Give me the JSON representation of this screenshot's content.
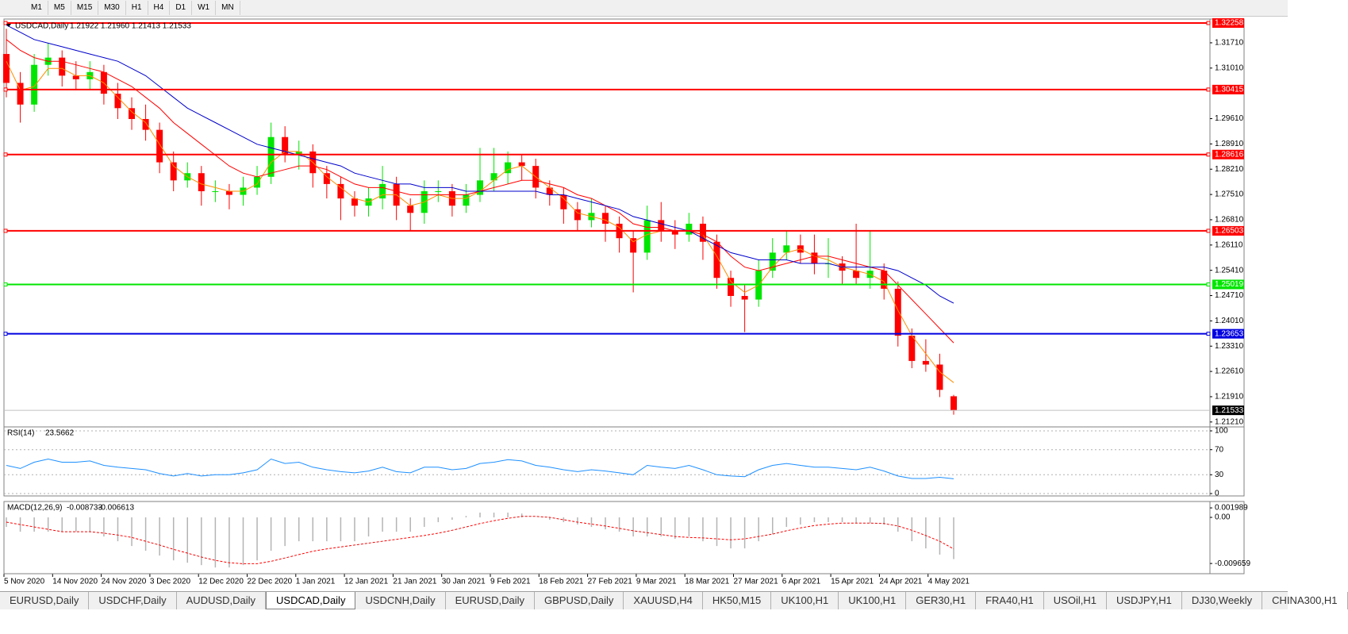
{
  "toolbar": {
    "timeframes": [
      "M1",
      "M5",
      "M15",
      "M30",
      "H1",
      "H4",
      "D1",
      "W1",
      "MN"
    ]
  },
  "chart_data": [
    {
      "type": "candlestick",
      "title": "USDCAD,Daily",
      "ohlc_label": "1.21922 1.21960 1.21413 1.21533",
      "up_color": "#00e600",
      "down_color": "#ff0000",
      "ylim": [
        1.2114,
        1.3228
      ],
      "yticks": [
        {
          "value": 1.3171,
          "label": "1.31710"
        },
        {
          "value": 1.3101,
          "label": "1.31010"
        },
        {
          "value": 1.2961,
          "label": "1.29610"
        },
        {
          "value": 1.2891,
          "label": "1.28910"
        },
        {
          "value": 1.2821,
          "label": "1.28210"
        },
        {
          "value": 1.2751,
          "label": "1.27510"
        },
        {
          "value": 1.2681,
          "label": "1.26810"
        },
        {
          "value": 1.2611,
          "label": "1.26110"
        },
        {
          "value": 1.2541,
          "label": "1.25410"
        },
        {
          "value": 1.2471,
          "label": "1.24710"
        },
        {
          "value": 1.2401,
          "label": "1.24010"
        },
        {
          "value": 1.2331,
          "label": "1.23310"
        },
        {
          "value": 1.2261,
          "label": "1.22610"
        },
        {
          "value": 1.2191,
          "label": "1.21910"
        },
        {
          "value": 1.2121,
          "label": "1.21210"
        }
      ],
      "levels": [
        {
          "value": 1.32258,
          "color": "#ff0000"
        },
        {
          "value": 1.30415,
          "color": "#ff0000"
        },
        {
          "value": 1.28616,
          "color": "#ff0000"
        },
        {
          "value": 1.26503,
          "color": "#ff0000"
        },
        {
          "value": 1.25019,
          "color": "#00e600"
        },
        {
          "value": 1.23653,
          "color": "#0000e0"
        }
      ],
      "last_price": 1.21533,
      "x_labels": [
        "5 Nov 2020",
        "14 Nov 2020",
        "24 Nov 2020",
        "3 Dec 2020",
        "12 Dec 2020",
        "22 Dec 2020",
        "1 Jan 2021",
        "12 Jan 2021",
        "21 Jan 2021",
        "30 Jan 2021",
        "9 Feb 2021",
        "18 Feb 2021",
        "27 Feb 2021",
        "9 Mar 2021",
        "18 Mar 2021",
        "27 Mar 2021",
        "6 Apr 2021",
        "15 Apr 2021",
        "24 Apr 2021",
        "4 May 2021"
      ],
      "candles": [
        [
          1.314,
          1.321,
          1.302,
          1.306
        ],
        [
          1.306,
          1.309,
          1.295,
          1.3
        ],
        [
          1.3,
          1.314,
          1.298,
          1.311
        ],
        [
          1.311,
          1.317,
          1.308,
          1.313
        ],
        [
          1.313,
          1.315,
          1.305,
          1.308
        ],
        [
          1.308,
          1.312,
          1.304,
          1.307
        ],
        [
          1.307,
          1.312,
          1.304,
          1.309
        ],
        [
          1.309,
          1.311,
          1.3,
          1.303
        ],
        [
          1.303,
          1.306,
          1.296,
          1.299
        ],
        [
          1.299,
          1.302,
          1.293,
          1.296
        ],
        [
          1.296,
          1.3,
          1.29,
          1.293
        ],
        [
          1.293,
          1.295,
          1.281,
          1.284
        ],
        [
          1.284,
          1.287,
          1.276,
          1.279
        ],
        [
          1.279,
          1.284,
          1.277,
          1.281
        ],
        [
          1.281,
          1.283,
          1.272,
          1.276
        ],
        [
          1.276,
          1.279,
          1.273,
          1.276
        ],
        [
          1.276,
          1.278,
          1.271,
          1.275
        ],
        [
          1.275,
          1.28,
          1.272,
          1.277
        ],
        [
          1.277,
          1.283,
          1.275,
          1.28
        ],
        [
          1.28,
          1.295,
          1.278,
          1.291
        ],
        [
          1.291,
          1.294,
          1.284,
          1.286
        ],
        [
          1.286,
          1.29,
          1.282,
          1.287
        ],
        [
          1.287,
          1.289,
          1.277,
          1.281
        ],
        [
          1.281,
          1.283,
          1.274,
          1.278
        ],
        [
          1.278,
          1.28,
          1.268,
          1.274
        ],
        [
          1.274,
          1.276,
          1.269,
          1.272
        ],
        [
          1.272,
          1.277,
          1.269,
          1.274
        ],
        [
          1.274,
          1.283,
          1.271,
          1.278
        ],
        [
          1.278,
          1.28,
          1.268,
          1.272
        ],
        [
          1.272,
          1.274,
          1.265,
          1.27
        ],
        [
          1.27,
          1.279,
          1.267,
          1.276
        ],
        [
          1.276,
          1.279,
          1.273,
          1.276
        ],
        [
          1.276,
          1.278,
          1.269,
          1.272
        ],
        [
          1.272,
          1.278,
          1.27,
          1.275
        ],
        [
          1.275,
          1.288,
          1.273,
          1.279
        ],
        [
          1.279,
          1.288,
          1.276,
          1.281
        ],
        [
          1.281,
          1.287,
          1.278,
          1.284
        ],
        [
          1.284,
          1.286,
          1.279,
          1.283
        ],
        [
          1.283,
          1.285,
          1.274,
          1.277
        ],
        [
          1.277,
          1.279,
          1.272,
          1.275
        ],
        [
          1.275,
          1.277,
          1.267,
          1.271
        ],
        [
          1.271,
          1.273,
          1.265,
          1.268
        ],
        [
          1.268,
          1.274,
          1.266,
          1.27
        ],
        [
          1.27,
          1.272,
          1.262,
          1.267
        ],
        [
          1.267,
          1.269,
          1.259,
          1.263
        ],
        [
          1.263,
          1.265,
          1.248,
          1.259
        ],
        [
          1.259,
          1.272,
          1.257,
          1.268
        ],
        [
          1.268,
          1.273,
          1.262,
          1.265
        ],
        [
          1.265,
          1.268,
          1.26,
          1.264
        ],
        [
          1.264,
          1.27,
          1.262,
          1.267
        ],
        [
          1.267,
          1.269,
          1.257,
          1.262
        ],
        [
          1.262,
          1.264,
          1.249,
          1.252
        ],
        [
          1.252,
          1.254,
          1.244,
          1.247
        ],
        [
          1.247,
          1.25,
          1.237,
          1.246
        ],
        [
          1.246,
          1.257,
          1.244,
          1.254
        ],
        [
          1.254,
          1.263,
          1.252,
          1.259
        ],
        [
          1.259,
          1.265,
          1.257,
          1.261
        ],
        [
          1.261,
          1.264,
          1.256,
          1.259
        ],
        [
          1.259,
          1.264,
          1.253,
          1.256
        ],
        [
          1.256,
          1.263,
          1.252,
          1.256
        ],
        [
          1.256,
          1.258,
          1.25,
          1.254
        ],
        [
          1.254,
          1.267,
          1.25,
          1.252
        ],
        [
          1.252,
          1.265,
          1.249,
          1.254
        ],
        [
          1.254,
          1.256,
          1.246,
          1.249
        ],
        [
          1.249,
          1.251,
          1.233,
          1.236
        ],
        [
          1.236,
          1.238,
          1.227,
          1.229
        ],
        [
          1.229,
          1.235,
          1.226,
          1.228
        ],
        [
          1.228,
          1.231,
          1.219,
          1.221
        ],
        [
          1.21922,
          1.2196,
          1.21413,
          1.21533
        ]
      ],
      "ma_lines": [
        {
          "color": "#ff8c00",
          "values": [
            1.312,
            1.304,
            1.305,
            1.31,
            1.31,
            1.308,
            1.308,
            1.306,
            1.302,
            1.298,
            1.295,
            1.289,
            1.283,
            1.28,
            1.278,
            1.277,
            1.276,
            1.276,
            1.278,
            1.284,
            1.287,
            1.287,
            1.284,
            1.28,
            1.277,
            1.274,
            1.273,
            1.275,
            1.275,
            1.272,
            1.273,
            1.275,
            1.274,
            1.274,
            1.276,
            1.279,
            1.282,
            1.283,
            1.28,
            1.277,
            1.274,
            1.27,
            1.269,
            1.268,
            1.266,
            1.262,
            1.264,
            1.265,
            1.265,
            1.265,
            1.264,
            1.258,
            1.251,
            1.248,
            1.25,
            1.255,
            1.259,
            1.26,
            1.258,
            1.257,
            1.255,
            1.254,
            1.253,
            1.251,
            1.243,
            1.236,
            1.231,
            1.226,
            1.223
          ]
        },
        {
          "color": "#ff0000",
          "values": [
            1.318,
            1.315,
            1.313,
            1.312,
            1.312,
            1.311,
            1.31,
            1.309,
            1.307,
            1.305,
            1.302,
            1.299,
            1.295,
            1.292,
            1.289,
            1.286,
            1.283,
            1.281,
            1.28,
            1.281,
            1.282,
            1.283,
            1.283,
            1.282,
            1.28,
            1.278,
            1.277,
            1.277,
            1.276,
            1.275,
            1.275,
            1.275,
            1.275,
            1.275,
            1.276,
            1.277,
            1.278,
            1.279,
            1.279,
            1.278,
            1.277,
            1.275,
            1.274,
            1.272,
            1.27,
            1.267,
            1.266,
            1.266,
            1.265,
            1.265,
            1.264,
            1.262,
            1.258,
            1.255,
            1.254,
            1.255,
            1.256,
            1.257,
            1.258,
            1.258,
            1.257,
            1.256,
            1.255,
            1.254,
            1.25,
            1.246,
            1.242,
            1.238,
            1.234
          ]
        },
        {
          "color": "#0000cc",
          "values": [
            1.322,
            1.32,
            1.318,
            1.317,
            1.316,
            1.315,
            1.314,
            1.313,
            1.312,
            1.31,
            1.308,
            1.305,
            1.302,
            1.299,
            1.297,
            1.295,
            1.293,
            1.291,
            1.289,
            1.288,
            1.287,
            1.286,
            1.285,
            1.284,
            1.283,
            1.281,
            1.28,
            1.279,
            1.278,
            1.278,
            1.277,
            1.277,
            1.277,
            1.276,
            1.276,
            1.276,
            1.276,
            1.276,
            1.276,
            1.275,
            1.275,
            1.274,
            1.273,
            1.272,
            1.271,
            1.269,
            1.268,
            1.267,
            1.266,
            1.265,
            1.263,
            1.261,
            1.259,
            1.258,
            1.257,
            1.257,
            1.257,
            1.256,
            1.256,
            1.256,
            1.255,
            1.255,
            1.255,
            1.255,
            1.254,
            1.252,
            1.25,
            1.247,
            1.245
          ]
        }
      ]
    },
    {
      "type": "line",
      "title": "RSI(14)",
      "color": "#1e90ff",
      "ylim": [
        0,
        100
      ],
      "yticks": [
        0,
        30,
        70,
        100
      ],
      "values": [
        45,
        40,
        50,
        55,
        50,
        50,
        52,
        45,
        42,
        40,
        38,
        32,
        28,
        32,
        28,
        30,
        30,
        33,
        38,
        55,
        48,
        50,
        42,
        38,
        35,
        33,
        36,
        42,
        35,
        33,
        42,
        42,
        38,
        40,
        48,
        50,
        54,
        52,
        45,
        42,
        38,
        35,
        38,
        36,
        33,
        30,
        45,
        42,
        40,
        45,
        38,
        30,
        28,
        27,
        38,
        45,
        48,
        45,
        42,
        42,
        40,
        38,
        42,
        36,
        28,
        24,
        24,
        26,
        23.5662
      ]
    },
    {
      "type": "macd",
      "title": "MACD(12,26,9)",
      "hist_color": "#b4b4b4",
      "signal_color": "#ff0000",
      "ylim": [
        -0.0113,
        0.002
      ],
      "yticks": [
        0.001989,
        {
          "value": 0,
          "label": "0.00"
        },
        -0.009659
      ],
      "histogram": [
        -0.002,
        -0.003,
        -0.003,
        -0.003,
        -0.003,
        -0.003,
        -0.003,
        -0.004,
        -0.005,
        -0.006,
        -0.007,
        -0.008,
        -0.009,
        -0.0095,
        -0.01,
        -0.0105,
        -0.0105,
        -0.01,
        -0.009,
        -0.007,
        -0.006,
        -0.005,
        -0.005,
        -0.005,
        -0.005,
        -0.005,
        -0.004,
        -0.003,
        -0.003,
        -0.003,
        -0.002,
        -0.001,
        -0.0005,
        0.0003,
        0.001,
        0.001,
        0.001,
        0.0008,
        0,
        -0.0005,
        -0.001,
        -0.0015,
        -0.002,
        -0.0025,
        -0.003,
        -0.004,
        -0.004,
        -0.004,
        -0.0045,
        -0.004,
        -0.005,
        -0.006,
        -0.0065,
        -0.0065,
        -0.005,
        -0.0035,
        -0.002,
        -0.0015,
        -0.001,
        -0.001,
        -0.001,
        -0.0012,
        -0.0012,
        -0.0015,
        -0.003,
        -0.005,
        -0.0065,
        -0.0078,
        -0.008733
      ],
      "signal": [
        -0.001,
        -0.0015,
        -0.002,
        -0.0025,
        -0.003,
        -0.003,
        -0.003,
        -0.0033,
        -0.0037,
        -0.0042,
        -0.005,
        -0.0058,
        -0.0067,
        -0.0075,
        -0.0083,
        -0.009,
        -0.0095,
        -0.0097,
        -0.0097,
        -0.0092,
        -0.0085,
        -0.0078,
        -0.0071,
        -0.0066,
        -0.0062,
        -0.0058,
        -0.0054,
        -0.005,
        -0.0046,
        -0.0042,
        -0.0038,
        -0.0033,
        -0.0027,
        -0.002,
        -0.0013,
        -0.0007,
        -0.0002,
        0.0002,
        0.0002,
        0,
        -0.0005,
        -0.001,
        -0.0014,
        -0.0018,
        -0.0023,
        -0.0028,
        -0.0032,
        -0.0036,
        -0.004,
        -0.0042,
        -0.0043,
        -0.0045,
        -0.0047,
        -0.0045,
        -0.004,
        -0.0035,
        -0.0028,
        -0.0022,
        -0.0017,
        -0.0014,
        -0.0012,
        -0.0012,
        -0.0012,
        -0.0013,
        -0.0018,
        -0.0027,
        -0.0038,
        -0.005,
        -0.006613
      ]
    }
  ],
  "tabs": [
    "EURUSD,Daily",
    "USDCHF,Daily",
    "AUDUSD,Daily",
    "USDCAD,Daily",
    "USDCNH,Daily",
    "EURUSD,Daily",
    "GBPUSD,Daily",
    "XAUUSD,H4",
    "HK50,M15",
    "UK100,H1",
    "UK100,H1",
    "GER30,H1",
    "FRA40,H1",
    "USOil,H1",
    "USDJPY,H1",
    "DJ30,Weekly",
    "CHINA300,H1"
  ],
  "active_tab": 3
}
